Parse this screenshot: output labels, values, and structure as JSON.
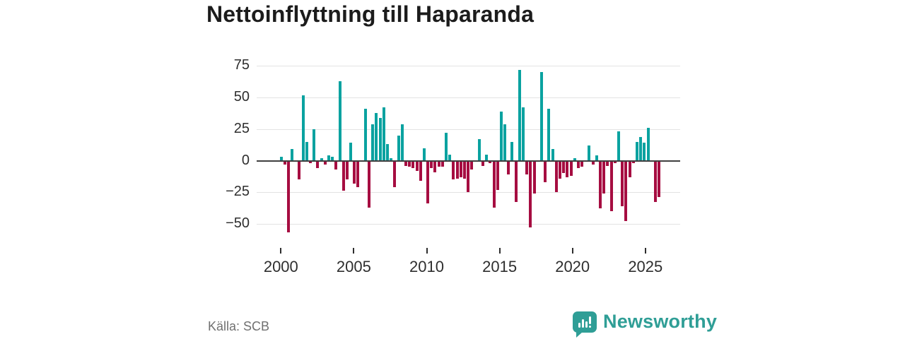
{
  "title": "Nettoinflyttning till Haparanda",
  "source_label": "Källa: SCB",
  "chart_data": {
    "type": "bar",
    "title": "Nettoinflyttning till Haparanda",
    "frequency": "quarterly",
    "start_period": "2000 Q1",
    "end_period": "2025 Q4",
    "values": [
      3,
      -3,
      -57,
      9,
      0,
      -15,
      52,
      15,
      -2,
      25,
      -6,
      2,
      -3,
      4,
      3,
      -7,
      63,
      -24,
      -15,
      14,
      -18,
      -21,
      0,
      41,
      -37,
      29,
      38,
      34,
      42,
      13,
      2,
      -21,
      20,
      29,
      -4,
      -5,
      -6,
      -8,
      -16,
      10,
      -34,
      -6,
      -9,
      -5,
      -5,
      22,
      5,
      -15,
      -14,
      -13,
      -14,
      -25,
      -7,
      0,
      17,
      -4,
      5,
      -2,
      -37,
      -23,
      39,
      29,
      -11,
      15,
      -33,
      72,
      42,
      -11,
      -53,
      -26,
      0,
      70,
      -17,
      41,
      9,
      -25,
      -14,
      -10,
      -13,
      -12,
      2,
      -6,
      -5,
      0,
      12,
      -3,
      4,
      -38,
      -26,
      -4,
      -40,
      -2,
      23,
      -36,
      -48,
      -13,
      -2,
      15,
      19,
      14,
      26,
      0,
      -33,
      -29
    ],
    "x_ticks": [
      2000,
      2005,
      2010,
      2015,
      2020,
      2025
    ],
    "y_ticks": [
      75,
      50,
      25,
      0,
      -25,
      -50
    ],
    "ylim": [
      -62,
      80
    ],
    "xlabel": "",
    "ylabel": "",
    "grid": "horizontal",
    "legend": "none",
    "positive_color": "#0aa2a0",
    "negative_color": "#a60d41"
  },
  "branding": {
    "name": "Newsworthy",
    "color": "#2f9e96",
    "icon": "bar-chart-speech-bubble"
  }
}
